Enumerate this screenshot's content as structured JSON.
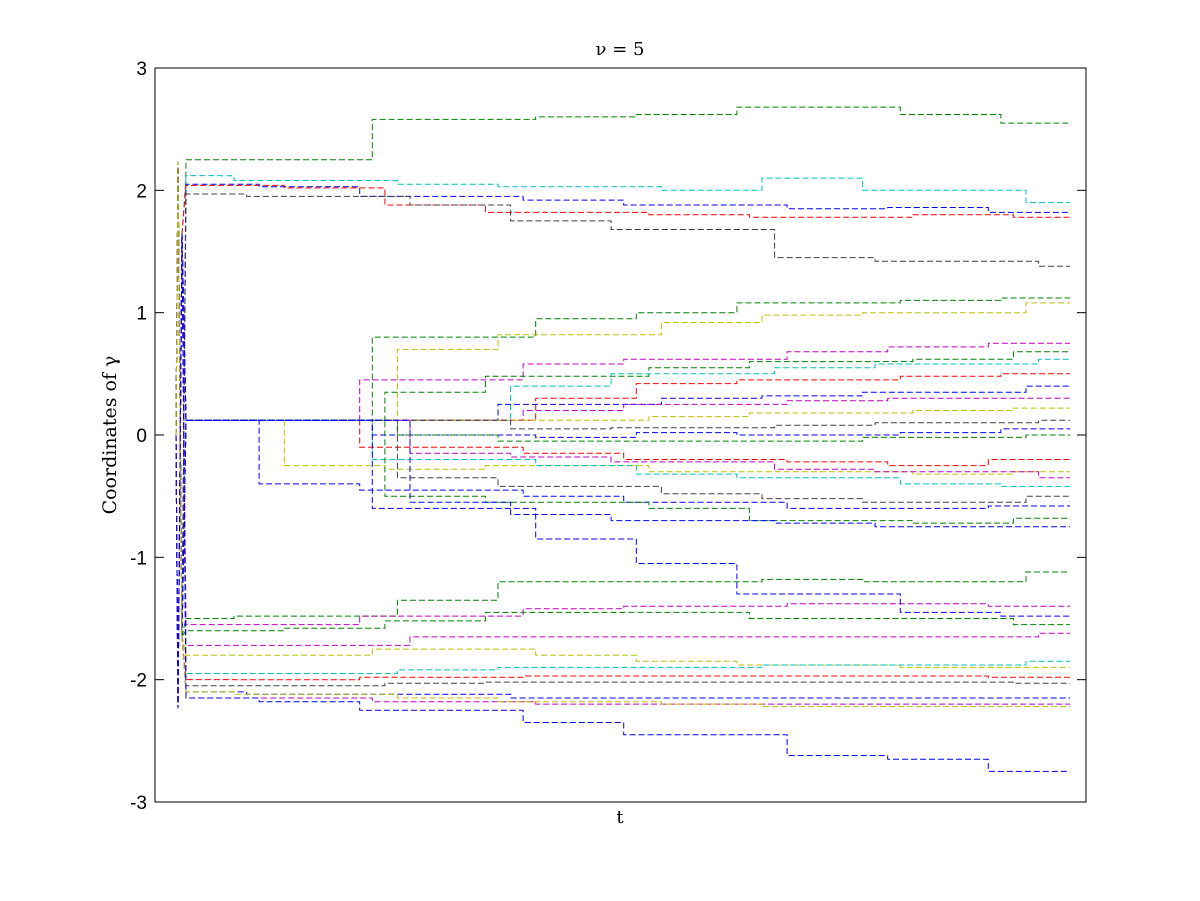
{
  "chart_data": {
    "type": "line",
    "title": "ν = 5",
    "xlabel": "t",
    "ylabel": "Coordinates of γ",
    "ylim": [
      -3,
      3
    ],
    "yticks": [
      -3,
      -2,
      -1,
      0,
      1,
      2,
      3
    ],
    "line_style": "dashed",
    "colors": [
      "#0000ff",
      "#008000",
      "#ff0000",
      "#00bfbf",
      "#bf00bf",
      "#bfbf00",
      "#404040"
    ],
    "series": [
      {
        "color": "#008000",
        "values": [
          2.25,
          2.25,
          2.58,
          2.6,
          2.62,
          2.68,
          2.62,
          2.55
        ]
      },
      {
        "color": "#00bfbf",
        "values": [
          2.12,
          2.08,
          2.05,
          2.03,
          2.0,
          2.1,
          2.0,
          1.9
        ]
      },
      {
        "color": "#0000ff",
        "values": [
          2.05,
          2.03,
          1.95,
          1.92,
          1.88,
          1.85,
          1.86,
          1.82
        ]
      },
      {
        "color": "#ff0000",
        "values": [
          2.04,
          2.02,
          1.88,
          1.82,
          1.8,
          1.78,
          1.8,
          1.78
        ]
      },
      {
        "color": "#404040",
        "values": [
          1.97,
          1.95,
          1.88,
          1.75,
          1.68,
          1.45,
          1.42,
          1.38
        ]
      },
      {
        "color": "#008000",
        "values": [
          0.12,
          0.12,
          0.8,
          0.95,
          1.0,
          1.08,
          1.1,
          1.12
        ]
      },
      {
        "color": "#bfbf00",
        "values": [
          0.12,
          0.12,
          0.7,
          0.82,
          0.92,
          0.98,
          1.0,
          1.08
        ]
      },
      {
        "color": "#bf00bf",
        "values": [
          0.12,
          0.12,
          0.45,
          0.58,
          0.62,
          0.68,
          0.72,
          0.75
        ]
      },
      {
        "color": "#008000",
        "values": [
          0.12,
          0.12,
          0.35,
          0.48,
          0.55,
          0.6,
          0.62,
          0.68
        ]
      },
      {
        "color": "#00bfbf",
        "values": [
          0.12,
          0.12,
          0.12,
          0.4,
          0.5,
          0.55,
          0.58,
          0.62
        ]
      },
      {
        "color": "#ff0000",
        "values": [
          0.12,
          0.12,
          0.12,
          0.3,
          0.42,
          0.45,
          0.48,
          0.5
        ]
      },
      {
        "color": "#0000ff",
        "values": [
          0.12,
          0.12,
          0.12,
          0.25,
          0.3,
          0.32,
          0.35,
          0.4
        ]
      },
      {
        "color": "#bf00bf",
        "values": [
          0.12,
          0.12,
          0.12,
          0.2,
          0.25,
          0.28,
          0.3,
          0.3
        ]
      },
      {
        "color": "#bfbf00",
        "values": [
          0.12,
          0.12,
          0.12,
          0.12,
          0.15,
          0.18,
          0.2,
          0.22
        ]
      },
      {
        "color": "#404040",
        "values": [
          0.12,
          0.12,
          0.12,
          0.05,
          0.06,
          0.08,
          0.1,
          0.12
        ]
      },
      {
        "color": "#0000ff",
        "values": [
          0.12,
          0.12,
          0.0,
          -0.02,
          0.02,
          0.0,
          0.02,
          0.05
        ]
      },
      {
        "color": "#008000",
        "values": [
          0.12,
          0.12,
          0.0,
          -0.05,
          -0.05,
          -0.05,
          -0.02,
          0.0
        ]
      },
      {
        "color": "#ff0000",
        "values": [
          0.12,
          0.12,
          -0.1,
          -0.15,
          -0.2,
          -0.22,
          -0.25,
          -0.2
        ]
      },
      {
        "color": "#bfbf00",
        "values": [
          0.12,
          -0.25,
          -0.28,
          -0.25,
          -0.3,
          -0.3,
          -0.32,
          -0.3
        ]
      },
      {
        "color": "#bf00bf",
        "values": [
          0.12,
          0.12,
          -0.15,
          -0.18,
          -0.22,
          -0.28,
          -0.3,
          -0.35
        ]
      },
      {
        "color": "#00bfbf",
        "values": [
          0.12,
          0.12,
          -0.2,
          -0.25,
          -0.32,
          -0.35,
          -0.4,
          -0.42
        ]
      },
      {
        "color": "#404040",
        "values": [
          0.12,
          0.12,
          -0.35,
          -0.42,
          -0.48,
          -0.52,
          -0.55,
          -0.5
        ]
      },
      {
        "color": "#0000ff",
        "values": [
          0.12,
          -0.4,
          -0.45,
          -0.5,
          -0.55,
          -0.6,
          -0.6,
          -0.58
        ]
      },
      {
        "color": "#008000",
        "values": [
          0.12,
          0.12,
          -0.5,
          -0.55,
          -0.6,
          -0.7,
          -0.72,
          -0.68
        ]
      },
      {
        "color": "#0000ff",
        "values": [
          0.12,
          0.12,
          -0.55,
          -0.65,
          -0.7,
          -0.72,
          -0.75,
          -0.75
        ]
      },
      {
        "color": "#0000ff",
        "values": [
          0.12,
          0.12,
          -0.6,
          -0.85,
          -1.05,
          -1.3,
          -1.45,
          -1.48
        ]
      },
      {
        "color": "#008000",
        "values": [
          -1.5,
          -1.48,
          -1.35,
          -1.2,
          -1.2,
          -1.18,
          -1.2,
          -1.12
        ]
      },
      {
        "color": "#bf00bf",
        "values": [
          -1.55,
          -1.55,
          -1.48,
          -1.42,
          -1.4,
          -1.38,
          -1.38,
          -1.4
        ]
      },
      {
        "color": "#008000",
        "values": [
          -1.6,
          -1.58,
          -1.52,
          -1.45,
          -1.45,
          -1.5,
          -1.5,
          -1.55
        ]
      },
      {
        "color": "#bf00bf",
        "values": [
          -1.72,
          -1.72,
          -1.65,
          -1.65,
          -1.65,
          -1.65,
          -1.65,
          -1.62
        ]
      },
      {
        "color": "#bfbf00",
        "values": [
          -1.8,
          -1.8,
          -1.75,
          -1.8,
          -1.85,
          -1.88,
          -1.9,
          -1.9
        ]
      },
      {
        "color": "#00bfbf",
        "values": [
          -1.95,
          -1.95,
          -1.92,
          -1.9,
          -1.9,
          -1.88,
          -1.88,
          -1.85
        ]
      },
      {
        "color": "#ff0000",
        "values": [
          -2.0,
          -2.0,
          -1.98,
          -1.97,
          -1.97,
          -1.97,
          -1.97,
          -1.98
        ]
      },
      {
        "color": "#404040",
        "values": [
          -2.05,
          -2.05,
          -2.03,
          -2.02,
          -2.02,
          -2.02,
          -2.02,
          -2.03
        ]
      },
      {
        "color": "#0000ff",
        "values": [
          -2.1,
          -2.12,
          -2.12,
          -2.15,
          -2.15,
          -2.15,
          -2.15,
          -2.15
        ]
      },
      {
        "color": "#bf00bf",
        "values": [
          -2.15,
          -2.15,
          -2.18,
          -2.2,
          -2.2,
          -2.2,
          -2.2,
          -2.2
        ]
      },
      {
        "color": "#bfbf00",
        "values": [
          -2.1,
          -2.12,
          -2.15,
          -2.18,
          -2.2,
          -2.22,
          -2.22,
          -2.22
        ]
      },
      {
        "color": "#0000ff",
        "values": [
          -2.15,
          -2.18,
          -2.25,
          -2.35,
          -2.45,
          -2.62,
          -2.65,
          -2.75
        ]
      }
    ]
  }
}
